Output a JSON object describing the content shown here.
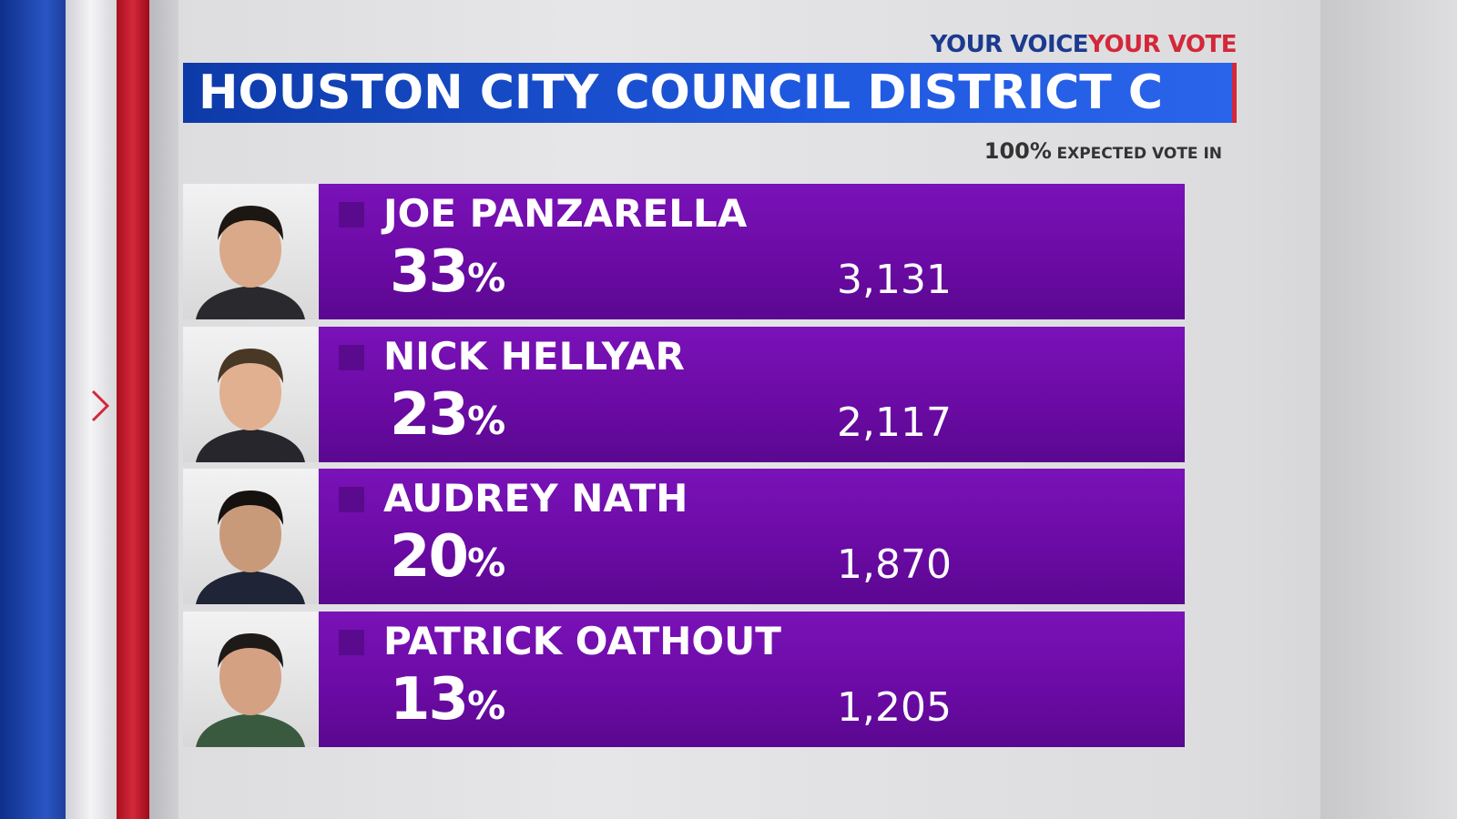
{
  "header": {
    "tagline_left": "YOUR VOICE",
    "tagline_right": "YOUR VOTE",
    "title": "HOUSTON CITY COUNCIL DISTRICT C",
    "expected": "100%",
    "expected_label": "EXPECTED VOTE IN"
  },
  "candidates": [
    {
      "name": "JOE PANZARELLA",
      "percent": "33",
      "percent_unit": "%",
      "votes": "3,131"
    },
    {
      "name": "NICK HELLYAR",
      "percent": "23",
      "percent_unit": "%",
      "votes": "2,117"
    },
    {
      "name": "AUDREY NATH",
      "percent": "20",
      "percent_unit": "%",
      "votes": "1,870"
    },
    {
      "name": "PATRICK OATHOUT",
      "percent": "13",
      "percent_unit": "%",
      "votes": "1,205"
    }
  ]
}
